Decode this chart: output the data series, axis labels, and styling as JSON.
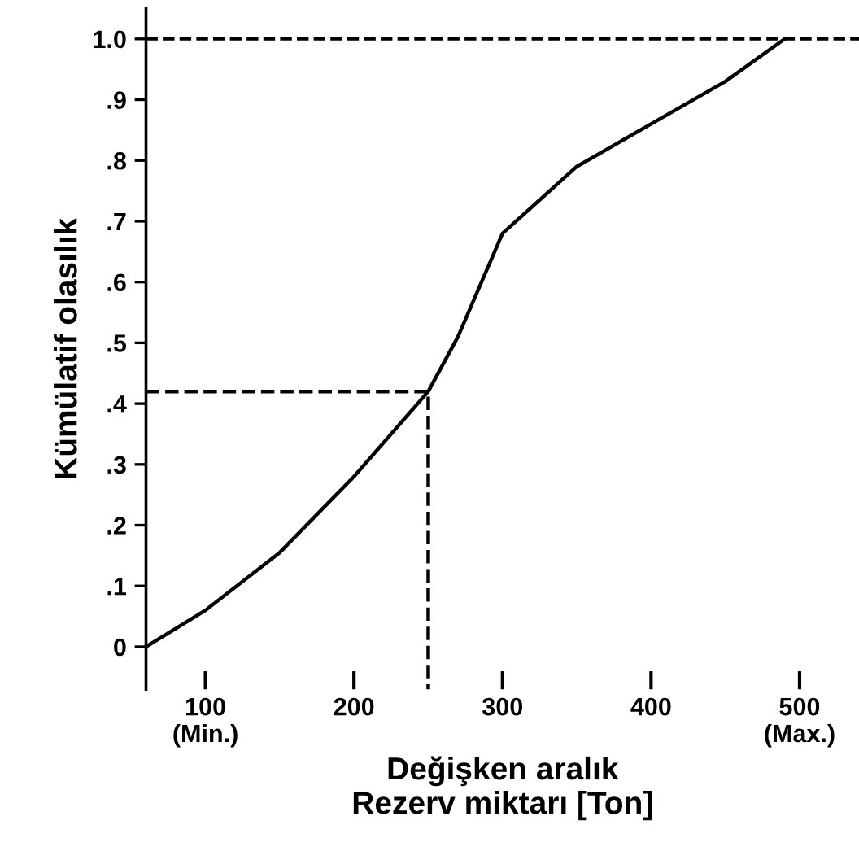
{
  "chart_data": {
    "type": "line",
    "xlabel": "Değişken aralık\nRezerv miktarı [Ton]",
    "ylabel": "Kümülatif olasılık",
    "series": [
      {
        "color": "#000000",
        "x": [
          60,
          100,
          150,
          200,
          250,
          270,
          300,
          350,
          400,
          450,
          490
        ],
        "values": [
          0,
          0.06,
          0.155,
          0.28,
          0.42,
          0.51,
          0.68,
          0.79,
          0.86,
          0.93,
          1.0
        ],
        "line_style": "solid"
      },
      {
        "color": "#000000",
        "x": [
          60,
          250,
          250
        ],
        "values": [
          0.42,
          0.42,
          -0.07
        ],
        "line_style": "dashed"
      }
    ],
    "ref_lines": [
      {
        "axis": "y",
        "value": 1.0,
        "color": "#000000",
        "line_style": "dashed"
      }
    ],
    "xlim": [
      60,
      540
    ],
    "ylim": [
      -0.07,
      1.05
    ],
    "xticks": [
      {
        "value": 100,
        "label": "100\n(Min.)"
      },
      200,
      300,
      400,
      {
        "value": 500,
        "label": "500\n(Max.)"
      }
    ],
    "yticks": [
      {
        "value": 0,
        "label": "0"
      },
      {
        "value": 0.1,
        "label": ".1"
      },
      {
        "value": 0.2,
        "label": ".2"
      },
      {
        "value": 0.3,
        "label": ".3"
      },
      {
        "value": 0.4,
        "label": ".4"
      },
      {
        "value": 0.5,
        "label": ".5"
      },
      {
        "value": 0.6,
        "label": ".6"
      },
      {
        "value": 0.7,
        "label": ".7"
      },
      {
        "value": 0.8,
        "label": ".8"
      },
      {
        "value": 0.9,
        "label": ".9"
      },
      {
        "value": 1.0,
        "label": "1.0"
      }
    ],
    "grid": false,
    "legend": false,
    "marker": "none"
  }
}
